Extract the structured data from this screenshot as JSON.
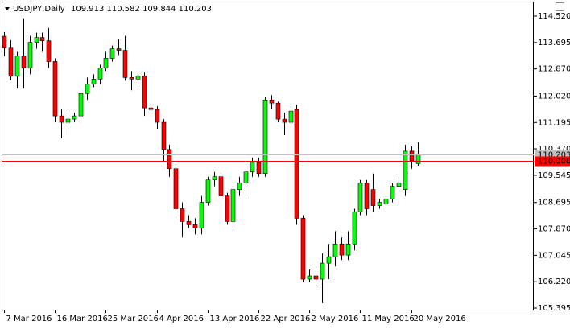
{
  "chart_data": {
    "type": "candlestick",
    "symbol": "USDJPY,Daily",
    "quote": "109.913 110.582 109.844 110.203",
    "categories": [
      "7 Mar 2016",
      null,
      null,
      null,
      null,
      null,
      null,
      null,
      "16 Mar 2016",
      null,
      null,
      null,
      null,
      null,
      null,
      null,
      "25 Mar 2016",
      null,
      null,
      null,
      null,
      null,
      null,
      null,
      "4 Apr 2016",
      null,
      null,
      null,
      null,
      null,
      null,
      null,
      "13 Apr 2016",
      null,
      null,
      null,
      null,
      null,
      null,
      null,
      "22 Apr 2016",
      null,
      null,
      null,
      null,
      null,
      null,
      null,
      "2 May 2016",
      null,
      null,
      null,
      null,
      null,
      null,
      null,
      "11 May 2016",
      null,
      null,
      null,
      null,
      null,
      null,
      null,
      "20 May 2016",
      null
    ],
    "open": [
      113.89,
      113.52,
      112.64,
      113.27,
      112.9,
      113.7,
      113.85,
      113.75,
      113.1,
      111.4,
      111.2,
      111.3,
      111.4,
      112.1,
      112.4,
      112.55,
      112.9,
      113.2,
      113.5,
      113.45,
      112.6,
      112.55,
      112.65,
      111.65,
      111.6,
      111.2,
      110.35,
      109.75,
      108.5,
      108.1,
      108.0,
      107.9,
      108.7,
      109.4,
      109.5,
      108.9,
      108.1,
      109.1,
      109.3,
      109.65,
      109.95,
      109.6,
      111.9,
      111.8,
      111.3,
      111.2,
      111.6,
      108.2,
      106.3,
      106.4,
      106.3,
      106.8,
      107.0,
      107.4,
      107.05,
      107.4,
      108.4,
      109.3,
      109.1,
      108.6,
      108.65,
      108.8,
      109.2,
      109.1,
      110.3,
      109.913
    ],
    "high": [
      114.02,
      113.77,
      113.4,
      114.45,
      113.9,
      114.0,
      114.0,
      114.15,
      113.2,
      111.6,
      111.5,
      111.5,
      112.2,
      112.6,
      112.7,
      113.0,
      113.4,
      113.6,
      113.8,
      113.9,
      112.8,
      112.8,
      112.75,
      111.8,
      111.7,
      111.3,
      110.5,
      109.9,
      108.7,
      108.3,
      108.2,
      108.9,
      109.5,
      109.65,
      109.6,
      109.0,
      109.2,
      109.5,
      109.9,
      110.1,
      110.1,
      112.0,
      112.05,
      111.85,
      111.5,
      111.7,
      111.75,
      108.3,
      106.6,
      106.7,
      107.1,
      107.4,
      107.8,
      107.6,
      107.8,
      108.5,
      109.4,
      109.4,
      109.6,
      108.8,
      108.9,
      109.3,
      109.5,
      110.5,
      110.45,
      110.582
    ],
    "low": [
      113.27,
      112.51,
      112.26,
      112.26,
      112.7,
      113.5,
      113.4,
      112.9,
      111.2,
      110.7,
      110.8,
      111.2,
      111.2,
      111.9,
      112.3,
      112.4,
      112.8,
      113.1,
      113.3,
      112.5,
      112.2,
      112.3,
      111.4,
      111.4,
      111.0,
      110.0,
      109.5,
      108.3,
      107.6,
      107.9,
      107.7,
      107.7,
      108.6,
      109.2,
      108.8,
      108.0,
      107.9,
      108.9,
      108.8,
      109.5,
      109.5,
      109.5,
      111.6,
      111.2,
      110.8,
      111.0,
      108.0,
      106.2,
      106.2,
      106.1,
      105.55,
      106.3,
      106.7,
      106.9,
      106.9,
      107.2,
      108.3,
      108.3,
      108.4,
      108.5,
      108.5,
      108.7,
      108.6,
      108.9,
      109.75,
      109.844
    ],
    "close": [
      113.52,
      112.64,
      113.27,
      112.9,
      113.7,
      113.85,
      113.75,
      113.1,
      111.4,
      111.2,
      111.3,
      111.4,
      112.1,
      112.4,
      112.55,
      112.9,
      113.2,
      113.5,
      113.45,
      112.6,
      112.55,
      112.65,
      111.65,
      111.6,
      111.2,
      110.35,
      109.75,
      108.5,
      108.1,
      108.0,
      107.9,
      108.7,
      109.4,
      109.5,
      108.9,
      108.1,
      109.1,
      109.3,
      109.65,
      109.95,
      109.6,
      111.9,
      111.8,
      111.3,
      111.2,
      111.55,
      108.2,
      106.3,
      106.4,
      106.3,
      106.8,
      107.0,
      107.4,
      107.05,
      107.4,
      108.4,
      109.3,
      108.5,
      108.6,
      108.7,
      108.8,
      109.2,
      109.3,
      110.3,
      110.0,
      110.203
    ],
    "up_color": "#00ff00",
    "down_color": "#ff0000",
    "wick_color": "#000000",
    "ylim": [
      105.345,
      114.897
    ],
    "yticks": [
      {
        "value": 114.52,
        "label": "114.520"
      },
      {
        "value": 113.695,
        "label": "113.695"
      },
      {
        "value": 112.87,
        "label": "112.870"
      },
      {
        "value": 112.02,
        "label": "112.020"
      },
      {
        "value": 111.195,
        "label": "111.195"
      },
      {
        "value": 110.37,
        "label": "110.370"
      },
      {
        "value": 109.545,
        "label": "109.545"
      },
      {
        "value": 108.695,
        "label": "108.695"
      },
      {
        "value": 107.87,
        "label": "107.870"
      },
      {
        "value": 107.045,
        "label": "107.045"
      },
      {
        "value": 106.22,
        "label": "106.220"
      },
      {
        "value": 105.395,
        "label": "105.395"
      }
    ],
    "price_lines": [
      {
        "value": 110.203,
        "label": "110.203",
        "color": "#c0c0c0"
      },
      {
        "value": 110,
        "label": "110.000",
        "color": "#ff0000"
      }
    ]
  }
}
